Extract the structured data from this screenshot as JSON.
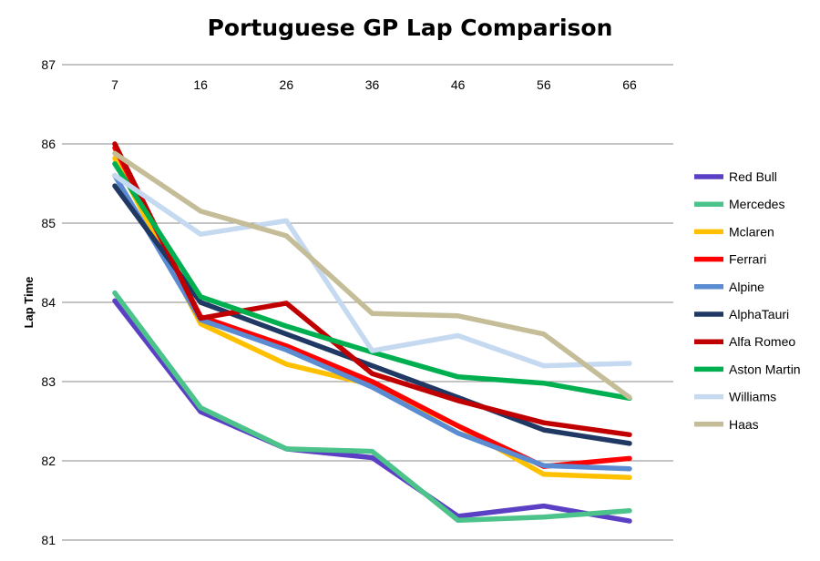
{
  "chart_data": {
    "type": "line",
    "title": "Portuguese GP Lap Comparison",
    "xlabel": "",
    "ylabel": "Lap Time",
    "x": [
      7,
      16,
      26,
      36,
      46,
      56,
      66
    ],
    "ylim": [
      81,
      87
    ],
    "yticks": [
      81,
      82,
      83,
      84,
      85,
      86,
      87
    ],
    "grid": true,
    "legend_position": "right",
    "series": [
      {
        "name": "Red Bull",
        "color": "#5B3FC4",
        "values": [
          84.02,
          82.62,
          82.15,
          82.04,
          81.3,
          81.43,
          81.24
        ]
      },
      {
        "name": "Mercedes",
        "color": "#4CC38A",
        "values": [
          84.12,
          82.67,
          82.15,
          82.12,
          81.25,
          81.29,
          81.37
        ]
      },
      {
        "name": "Mclaren",
        "color": "#FFC000",
        "values": [
          85.82,
          83.73,
          83.22,
          82.96,
          82.44,
          81.83,
          81.79
        ]
      },
      {
        "name": "Ferrari",
        "color": "#FF0000",
        "values": [
          85.95,
          83.82,
          83.45,
          83.0,
          82.44,
          81.93,
          82.03
        ]
      },
      {
        "name": "Alpine",
        "color": "#5B8BD0",
        "values": [
          85.6,
          83.78,
          83.4,
          82.93,
          82.35,
          81.94,
          81.9
        ]
      },
      {
        "name": "AlphaTauri",
        "color": "#203864",
        "values": [
          85.47,
          84.0,
          83.6,
          83.2,
          82.8,
          82.39,
          82.22
        ]
      },
      {
        "name": "Alfa Romeo",
        "color": "#C00000",
        "values": [
          86.0,
          83.8,
          83.99,
          83.1,
          82.76,
          82.48,
          82.33
        ]
      },
      {
        "name": "Aston Martin",
        "color": "#00B050",
        "values": [
          85.75,
          84.07,
          83.7,
          83.37,
          83.06,
          82.98,
          82.79
        ]
      },
      {
        "name": "Williams",
        "color": "#C5D9F1",
        "values": [
          85.6,
          84.86,
          85.03,
          83.39,
          83.58,
          83.2,
          83.23
        ]
      },
      {
        "name": "Haas",
        "color": "#C4BD97",
        "values": [
          85.88,
          85.15,
          84.84,
          83.86,
          83.83,
          83.6,
          82.8
        ]
      }
    ]
  }
}
